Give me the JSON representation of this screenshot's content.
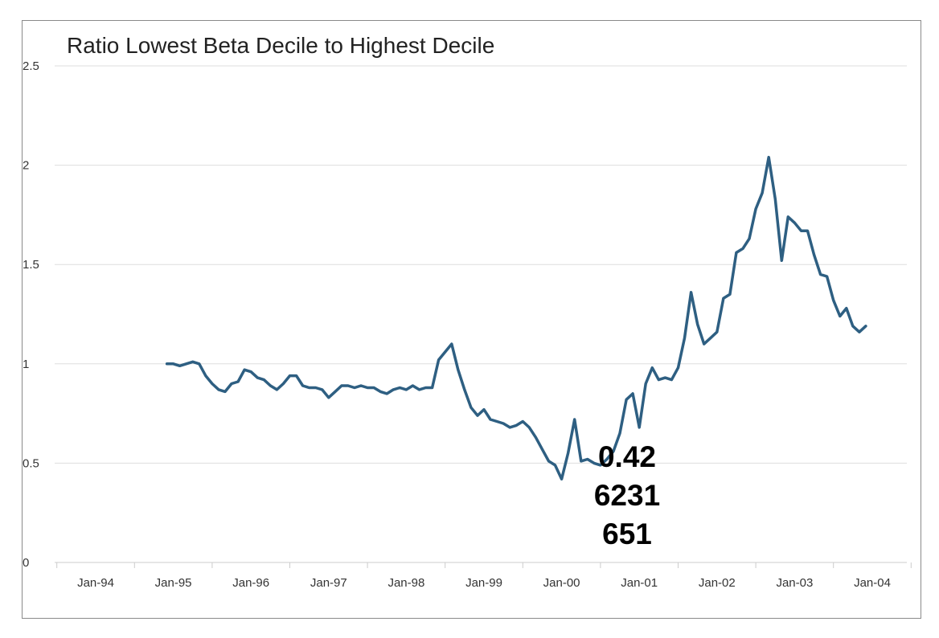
{
  "chart_data": {
    "type": "line",
    "title": "Ratio Lowest Beta Decile to Highest Decile",
    "xlabel": "",
    "ylabel": "",
    "ylim": [
      0,
      2.5
    ],
    "yticks": [
      "0",
      "0.5",
      "1",
      "1.5",
      "2",
      "2.5"
    ],
    "xticks": [
      "Jan-94",
      "Jan-95",
      "Jan-96",
      "Jan-97",
      "Jan-98",
      "Jan-99",
      "Jan-00",
      "Jan-01",
      "Jan-02",
      "Jan-03",
      "Jan-04"
    ],
    "grid": true,
    "line_color": "#2e5f82",
    "annotation": [
      "0.42",
      "6231",
      "651"
    ],
    "series": [
      {
        "x": [
          "1994-12",
          "1995-01",
          "1995-02",
          "1995-03",
          "1995-04",
          "1995-05",
          "1995-06",
          "1995-07",
          "1995-08",
          "1995-09",
          "1995-10",
          "1995-11",
          "1995-12",
          "1996-01",
          "1996-02",
          "1996-03",
          "1996-04",
          "1996-05",
          "1996-06",
          "1996-07",
          "1996-08",
          "1996-09",
          "1996-10",
          "1996-11",
          "1996-12",
          "1997-01",
          "1997-02",
          "1997-03",
          "1997-04",
          "1997-05",
          "1997-06",
          "1997-07",
          "1997-08",
          "1997-09",
          "1997-10",
          "1997-11",
          "1997-12",
          "1998-01",
          "1998-02",
          "1998-03",
          "1998-04",
          "1998-05",
          "1998-06",
          "1998-07",
          "1998-08",
          "1998-09",
          "1998-10",
          "1998-11",
          "1998-12",
          "1999-01",
          "1999-02",
          "1999-03",
          "1999-04",
          "1999-05",
          "1999-06",
          "1999-07",
          "1999-08",
          "1999-09",
          "1999-10",
          "1999-11",
          "1999-12",
          "2000-01",
          "2000-02",
          "2000-03",
          "2000-04",
          "2000-05",
          "2000-06",
          "2000-07",
          "2000-08",
          "2000-09",
          "2000-10",
          "2000-11",
          "2000-12",
          "2001-01",
          "2001-02",
          "2001-03",
          "2001-04",
          "2001-05",
          "2001-06",
          "2001-07",
          "2001-08",
          "2001-09",
          "2001-10",
          "2001-11",
          "2001-12",
          "2002-01",
          "2002-02",
          "2002-03",
          "2002-04",
          "2002-05",
          "2002-06",
          "2002-07",
          "2002-08",
          "2002-09",
          "2002-10",
          "2002-11",
          "2002-12",
          "2003-01",
          "2003-02",
          "2003-03",
          "2003-04",
          "2003-05",
          "2003-06",
          "2003-07",
          "2003-08",
          "2003-09",
          "2003-10",
          "2003-11",
          "2003-12"
        ],
        "values": [
          1.0,
          1.0,
          0.99,
          1.0,
          1.01,
          1.0,
          0.94,
          0.9,
          0.87,
          0.86,
          0.9,
          0.91,
          0.97,
          0.96,
          0.93,
          0.92,
          0.89,
          0.87,
          0.9,
          0.94,
          0.94,
          0.89,
          0.88,
          0.88,
          0.87,
          0.83,
          0.86,
          0.89,
          0.89,
          0.88,
          0.89,
          0.88,
          0.88,
          0.86,
          0.85,
          0.87,
          0.88,
          0.87,
          0.89,
          0.87,
          0.88,
          0.88,
          1.02,
          1.06,
          1.1,
          0.97,
          0.87,
          0.78,
          0.74,
          0.77,
          0.72,
          0.71,
          0.7,
          0.68,
          0.69,
          0.71,
          0.68,
          0.63,
          0.57,
          0.51,
          0.49,
          0.42,
          0.55,
          0.72,
          0.51,
          0.52,
          0.5,
          0.49,
          0.52,
          0.56,
          0.65,
          0.82,
          0.85,
          0.68,
          0.9,
          0.98,
          0.92,
          0.93,
          0.92,
          0.98,
          1.13,
          1.36,
          1.2,
          1.1,
          1.13,
          1.16,
          1.33,
          1.35,
          1.56,
          1.58,
          1.63,
          1.78,
          1.86,
          2.04,
          1.83,
          1.52,
          1.74,
          1.71,
          1.67,
          1.67,
          1.55,
          1.45,
          1.44,
          1.32,
          1.24,
          1.28,
          1.19,
          1.16,
          1.19
        ]
      }
    ]
  }
}
